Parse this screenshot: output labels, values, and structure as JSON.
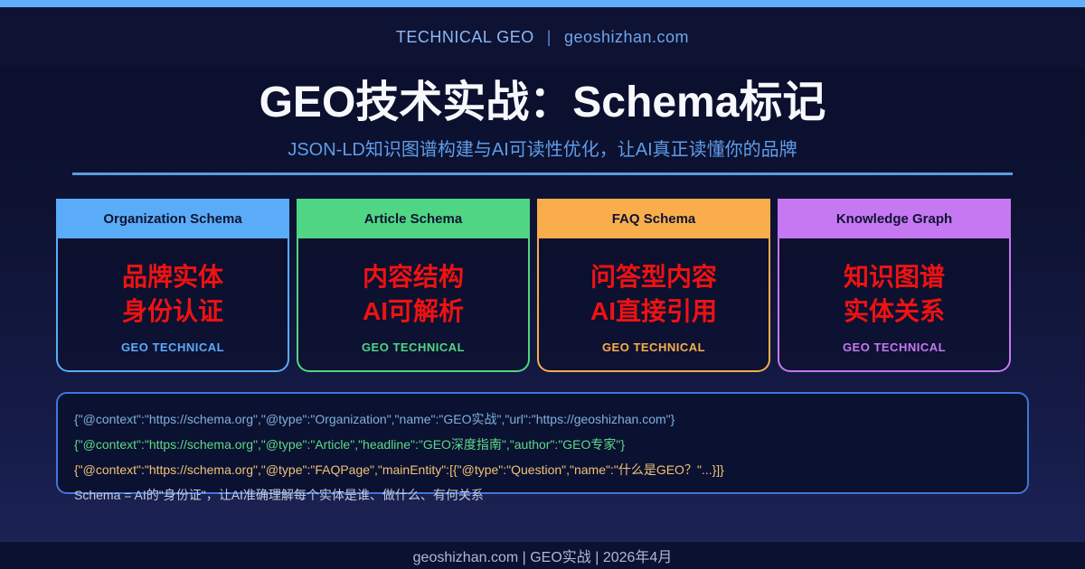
{
  "topbar": {
    "color": "#60aefc"
  },
  "header": {
    "brand": "TECHNICAL GEO",
    "separator": "|",
    "site": "geoshizhan.com"
  },
  "hero": {
    "title": "GEO技术实战：Schema标记",
    "subtitle": "JSON-LD知识图谱构建与AI可读性优化，让AI真正读懂你的品牌",
    "divider_color": "#5a9de0",
    "title_color": "#f7f8fc",
    "subtitle_color": "#5f9ce8"
  },
  "cards": [
    {
      "header": "Organization Schema",
      "accent": "#5aacf8",
      "line1": "品牌实体",
      "line2": "身份认证",
      "tag": "GEO TECHNICAL"
    },
    {
      "header": "Article Schema",
      "accent": "#50d584",
      "line1": "内容结构",
      "line2": "AI可解析",
      "tag": "GEO TECHNICAL"
    },
    {
      "header": "FAQ Schema",
      "accent": "#f9ae4b",
      "line1": "问答型内容",
      "line2": "AI直接引用",
      "tag": "GEO TECHNICAL"
    },
    {
      "header": "Knowledge Graph",
      "accent": "#c678f2",
      "line1": "知识图谱",
      "line2": "实体关系",
      "tag": "GEO TECHNICAL"
    }
  ],
  "highlight_color": "#ee1212",
  "code_block": {
    "border_color": "#4076d8",
    "lines": [
      {
        "text": "{\"@context\":\"https://schema.org\",\"@type\":\"Organization\",\"name\":\"GEO实战\",\"url\":\"https://geoshizhan.com\"}",
        "color": "#7fb0e0"
      },
      {
        "text": "{\"@context\":\"https://schema.org\",\"@type\":\"Article\",\"headline\":\"GEO深度指南\",\"author\":\"GEO专家\"}",
        "color": "#5fd98a"
      },
      {
        "text": "{\"@context\":\"https://schema.org\",\"@type\":\"FAQPage\",\"mainEntity\":[{\"@type\":\"Question\",\"name\":\"什么是GEO？\"...}]}",
        "color": "#f0c278"
      },
      {
        "text": "Schema = AI的\"身份证\"，让AI准确理解每个实体是谁、做什么、有何关系",
        "color": "#c6cbda"
      }
    ]
  },
  "footer": {
    "text": "geoshizhan.com | GEO实战 | 2026年4月"
  }
}
